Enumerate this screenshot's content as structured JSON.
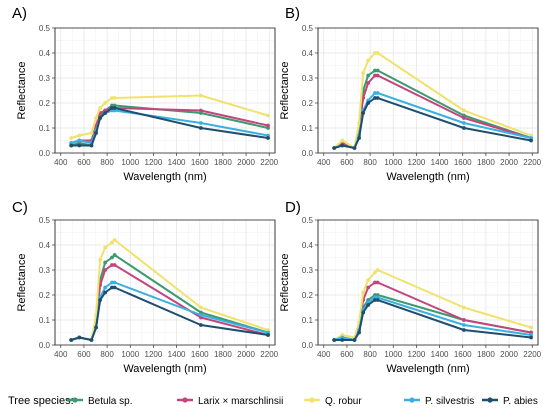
{
  "legend": {
    "title": "Tree species:",
    "position": "bottom"
  },
  "series_info": [
    {
      "name": "Betula sp.",
      "color": "#3d9970"
    },
    {
      "name": "Larix × marschlinsii",
      "color": "#c2467e"
    },
    {
      "name": "Q. robur",
      "color": "#f0e26a"
    },
    {
      "name": "P. silvestris",
      "color": "#3ab0e0"
    },
    {
      "name": "P. abies",
      "color": "#1f4e6e"
    }
  ],
  "chart_data": [
    {
      "panel": "A)",
      "type": "line",
      "xlabel": "Wavelength (nm)",
      "ylabel": "Reflectance",
      "xlim": [
        350,
        2250
      ],
      "ylim": [
        0,
        0.5
      ],
      "xticks": [
        400,
        600,
        800,
        1000,
        1200,
        1400,
        1600,
        1800,
        2000,
        2200
      ],
      "yticks": [
        0.0,
        0.1,
        0.2,
        0.3,
        0.4,
        0.5
      ],
      "grid": true,
      "x": [
        490,
        560,
        665,
        705,
        740,
        783,
        842,
        865,
        1610,
        2190
      ],
      "series": [
        {
          "name": "Betula sp.",
          "values": [
            0.03,
            0.04,
            0.03,
            0.09,
            0.15,
            0.17,
            0.19,
            0.19,
            0.16,
            0.1
          ]
        },
        {
          "name": "Larix × marschlinsii",
          "values": [
            0.04,
            0.05,
            0.05,
            0.11,
            0.16,
            0.17,
            0.18,
            0.18,
            0.17,
            0.11
          ]
        },
        {
          "name": "Q. robur",
          "values": [
            0.06,
            0.07,
            0.08,
            0.14,
            0.18,
            0.2,
            0.22,
            0.22,
            0.23,
            0.15
          ]
        },
        {
          "name": "P. silvestris",
          "values": [
            0.04,
            0.05,
            0.04,
            0.09,
            0.14,
            0.16,
            0.17,
            0.17,
            0.12,
            0.07
          ]
        },
        {
          "name": "P. abies",
          "values": [
            0.03,
            0.03,
            0.03,
            0.08,
            0.14,
            0.16,
            0.18,
            0.18,
            0.1,
            0.06
          ]
        }
      ]
    },
    {
      "panel": "B)",
      "type": "line",
      "xlabel": "Wavelength (nm)",
      "ylabel": "Reflectance",
      "xlim": [
        350,
        2250
      ],
      "ylim": [
        0,
        0.5
      ],
      "xticks": [
        400,
        600,
        800,
        1000,
        1200,
        1400,
        1600,
        1800,
        2000,
        2200
      ],
      "yticks": [
        0.0,
        0.1,
        0.2,
        0.3,
        0.4,
        0.5
      ],
      "grid": true,
      "x": [
        490,
        560,
        665,
        705,
        740,
        783,
        842,
        865,
        1610,
        2190
      ],
      "series": [
        {
          "name": "Betula sp.",
          "values": [
            0.02,
            0.04,
            0.02,
            0.1,
            0.25,
            0.31,
            0.33,
            0.33,
            0.15,
            0.06
          ]
        },
        {
          "name": "Larix × marschlinsii",
          "values": [
            0.02,
            0.04,
            0.02,
            0.09,
            0.22,
            0.28,
            0.31,
            0.31,
            0.14,
            0.06
          ]
        },
        {
          "name": "Q. robur",
          "values": [
            0.02,
            0.05,
            0.02,
            0.12,
            0.32,
            0.37,
            0.4,
            0.4,
            0.17,
            0.07
          ]
        },
        {
          "name": "P. silvestris",
          "values": [
            0.02,
            0.03,
            0.02,
            0.07,
            0.17,
            0.21,
            0.24,
            0.24,
            0.12,
            0.06
          ]
        },
        {
          "name": "P. abies",
          "values": [
            0.02,
            0.03,
            0.02,
            0.06,
            0.16,
            0.2,
            0.22,
            0.22,
            0.1,
            0.05
          ]
        }
      ]
    },
    {
      "panel": "C)",
      "type": "line",
      "xlabel": "Wavelength (nm)",
      "ylabel": "Reflectance",
      "xlim": [
        350,
        2250
      ],
      "ylim": [
        0,
        0.5
      ],
      "xticks": [
        400,
        600,
        800,
        1000,
        1200,
        1400,
        1600,
        1800,
        2000,
        2200
      ],
      "yticks": [
        0.0,
        0.1,
        0.2,
        0.3,
        0.4,
        0.5
      ],
      "grid": true,
      "x": [
        490,
        560,
        665,
        705,
        740,
        783,
        842,
        865,
        1610,
        2190
      ],
      "series": [
        {
          "name": "Betula sp.",
          "values": [
            0.02,
            0.03,
            0.02,
            0.1,
            0.26,
            0.33,
            0.35,
            0.36,
            0.13,
            0.05
          ]
        },
        {
          "name": "Larix × marschlinsii",
          "values": [
            0.02,
            0.03,
            0.02,
            0.09,
            0.24,
            0.3,
            0.32,
            0.32,
            0.11,
            0.04
          ]
        },
        {
          "name": "Q. robur",
          "values": [
            0.02,
            0.03,
            0.02,
            0.12,
            0.34,
            0.39,
            0.41,
            0.42,
            0.15,
            0.06
          ]
        },
        {
          "name": "P. silvestris",
          "values": [
            0.02,
            0.03,
            0.02,
            0.07,
            0.19,
            0.23,
            0.25,
            0.25,
            0.12,
            0.05
          ]
        },
        {
          "name": "P. abies",
          "values": [
            0.02,
            0.03,
            0.02,
            0.07,
            0.18,
            0.21,
            0.23,
            0.23,
            0.08,
            0.04
          ]
        }
      ]
    },
    {
      "panel": "D)",
      "type": "line",
      "xlabel": "Wavelength (nm)",
      "ylabel": "Reflectance",
      "xlim": [
        350,
        2250
      ],
      "ylim": [
        0,
        0.5
      ],
      "xticks": [
        400,
        600,
        800,
        1000,
        1200,
        1400,
        1600,
        1800,
        2000,
        2200
      ],
      "yticks": [
        0.0,
        0.1,
        0.2,
        0.3,
        0.4,
        0.5
      ],
      "grid": true,
      "x": [
        490,
        560,
        665,
        705,
        740,
        783,
        842,
        865,
        1610,
        2190
      ],
      "series": [
        {
          "name": "Betula sp.",
          "values": [
            0.02,
            0.03,
            0.02,
            0.06,
            0.15,
            0.18,
            0.2,
            0.2,
            0.1,
            0.05
          ]
        },
        {
          "name": "Larix × marschlinsii",
          "values": [
            0.02,
            0.03,
            0.02,
            0.07,
            0.18,
            0.23,
            0.25,
            0.25,
            0.1,
            0.05
          ]
        },
        {
          "name": "Q. robur",
          "values": [
            0.02,
            0.04,
            0.03,
            0.09,
            0.21,
            0.26,
            0.29,
            0.3,
            0.15,
            0.07
          ]
        },
        {
          "name": "P. silvestris",
          "values": [
            0.02,
            0.03,
            0.02,
            0.06,
            0.14,
            0.17,
            0.19,
            0.19,
            0.08,
            0.04
          ]
        },
        {
          "name": "P. abies",
          "values": [
            0.02,
            0.02,
            0.02,
            0.05,
            0.13,
            0.16,
            0.18,
            0.18,
            0.06,
            0.03
          ]
        }
      ]
    }
  ]
}
